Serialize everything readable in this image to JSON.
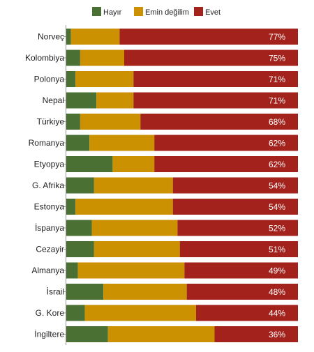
{
  "colors": {
    "no": "#4b7033",
    "unsure": "#cc9100",
    "yes": "#a3221c",
    "label_on_bar": "#ffffff",
    "text": "#222222",
    "axis": "#9a9a9a"
  },
  "chart_data": {
    "type": "bar",
    "orientation": "horizontal",
    "stacked": true,
    "legend_position": "top",
    "value_unit": "%",
    "categories": [
      "Norveç",
      "Kolombiya",
      "Polonya",
      "Nepal",
      "Türkiye",
      "Romanya",
      "Etyopya",
      "G. Afrika",
      "Estonya",
      "İspanya",
      "Cezayir",
      "Almanya",
      "İsrail",
      "G. Kore",
      "İngiltere"
    ],
    "series": [
      {
        "name": "Hayır",
        "color": "#4b7033",
        "values": [
          2,
          6,
          4,
          13,
          6,
          10,
          20,
          12,
          4,
          11,
          12,
          5,
          16,
          8,
          18
        ]
      },
      {
        "name": "Emin değilim",
        "color": "#cc9100",
        "values": [
          21,
          19,
          25,
          16,
          26,
          28,
          18,
          34,
          42,
          37,
          37,
          46,
          36,
          48,
          46
        ]
      },
      {
        "name": "Evet",
        "color": "#a3221c",
        "values": [
          77,
          75,
          71,
          71,
          68,
          62,
          62,
          54,
          54,
          52,
          51,
          49,
          48,
          44,
          36
        ]
      }
    ],
    "value_labels": [
      "77%",
      "75%",
      "71%",
      "71%",
      "68%",
      "62%",
      "62%",
      "54%",
      "54%",
      "52%",
      "51%",
      "49%",
      "48%",
      "44%",
      "36%"
    ],
    "xlim": [
      0,
      100
    ],
    "grid": false
  }
}
